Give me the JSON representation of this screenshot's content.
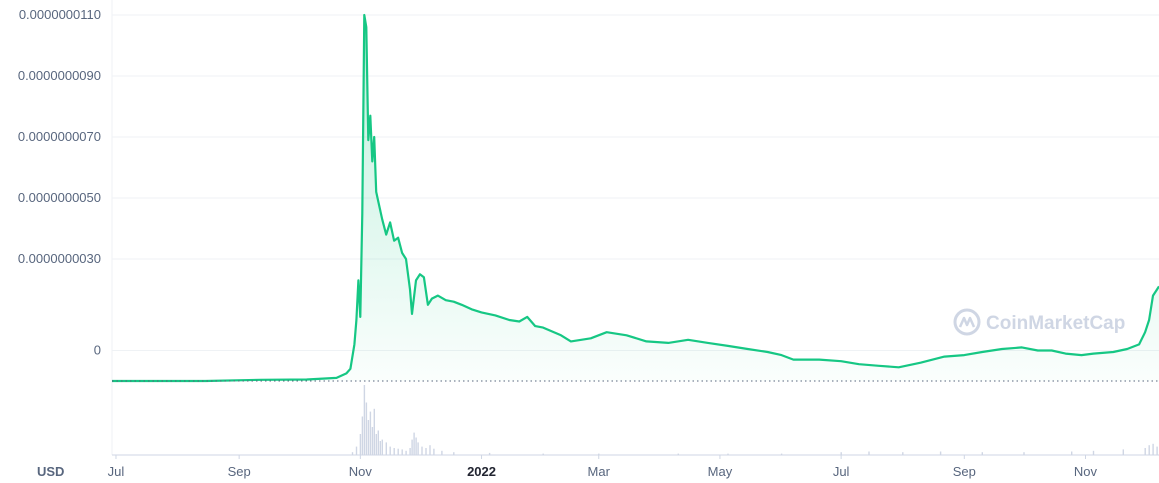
{
  "currency_label": "USD",
  "watermark": {
    "text": "CoinMarketCap",
    "icon": "coinmarketcap-logo-icon"
  },
  "colors": {
    "line": "#16c784",
    "fill_top": "#16c784",
    "volume": "#cfd6e4",
    "grid": "#eff2f5",
    "baseline_dots": "#58667e"
  },
  "chart_data": {
    "type": "area",
    "title": "",
    "xlabel": "",
    "ylabel": "",
    "ylim": [
      -1e-09,
      1.1e-08
    ],
    "yticks": [
      {
        "value": 1.1e-08,
        "label": "0.0000000110"
      },
      {
        "value": 9e-09,
        "label": "0.0000000090"
      },
      {
        "value": 7e-09,
        "label": "0.0000000070"
      },
      {
        "value": 5e-09,
        "label": "0.0000000050"
      },
      {
        "value": 3e-09,
        "label": "0.0000000030"
      },
      {
        "value": 0,
        "label": "0"
      }
    ],
    "xlim": [
      "2021-06-29",
      "2022-12-08"
    ],
    "xticks": [
      {
        "date": "2021-07-01",
        "label": "Jul",
        "bold": false
      },
      {
        "date": "2021-09-01",
        "label": "Sep",
        "bold": false
      },
      {
        "date": "2021-11-01",
        "label": "Nov",
        "bold": false
      },
      {
        "date": "2022-01-01",
        "label": "2022",
        "bold": true
      },
      {
        "date": "2022-03-01",
        "label": "Mar",
        "bold": false
      },
      {
        "date": "2022-05-01",
        "label": "May",
        "bold": false
      },
      {
        "date": "2022-07-01",
        "label": "Jul",
        "bold": false
      },
      {
        "date": "2022-09-01",
        "label": "Sep",
        "bold": false
      },
      {
        "date": "2022-11-01",
        "label": "Nov",
        "bold": false
      }
    ],
    "grid": true,
    "legend": "none",
    "series": [
      {
        "points": [
          [
            "2021-06-29",
            -1e-09
          ],
          [
            "2021-08-15",
            -1e-09
          ],
          [
            "2021-09-12",
            -9.6e-10
          ],
          [
            "2021-10-05",
            -9.5e-10
          ],
          [
            "2021-10-20",
            -9e-10
          ],
          [
            "2021-10-25",
            -7.5e-10
          ],
          [
            "2021-10-27",
            -6e-10
          ],
          [
            "2021-10-29",
            2e-10
          ],
          [
            "2021-10-30",
            1e-09
          ],
          [
            "2021-10-31",
            2.3e-09
          ],
          [
            "2021-11-01",
            1.1e-09
          ],
          [
            "2021-11-02",
            4.5e-09
          ],
          [
            "2021-11-03",
            1.1e-08
          ],
          [
            "2021-11-04",
            1.06e-08
          ],
          [
            "2021-11-05",
            6.9e-09
          ],
          [
            "2021-11-06",
            7.7e-09
          ],
          [
            "2021-11-07",
            6.2e-09
          ],
          [
            "2021-11-08",
            7e-09
          ],
          [
            "2021-11-09",
            5.2e-09
          ],
          [
            "2021-11-10",
            4.9e-09
          ],
          [
            "2021-11-12",
            4.3e-09
          ],
          [
            "2021-11-14",
            3.8e-09
          ],
          [
            "2021-11-16",
            4.2e-09
          ],
          [
            "2021-11-18",
            3.6e-09
          ],
          [
            "2021-11-20",
            3.7e-09
          ],
          [
            "2021-11-22",
            3.2e-09
          ],
          [
            "2021-11-24",
            3e-09
          ],
          [
            "2021-11-26",
            2e-09
          ],
          [
            "2021-11-27",
            1.2e-09
          ],
          [
            "2021-11-29",
            2.3e-09
          ],
          [
            "2021-12-01",
            2.5e-09
          ],
          [
            "2021-12-03",
            2.4e-09
          ],
          [
            "2021-12-05",
            1.5e-09
          ],
          [
            "2021-12-07",
            1.7e-09
          ],
          [
            "2021-12-10",
            1.8e-09
          ],
          [
            "2021-12-14",
            1.65e-09
          ],
          [
            "2021-12-18",
            1.6e-09
          ],
          [
            "2021-12-22",
            1.5e-09
          ],
          [
            "2021-12-27",
            1.35e-09
          ],
          [
            "2022-01-01",
            1.25e-09
          ],
          [
            "2022-01-08",
            1.15e-09
          ],
          [
            "2022-01-15",
            1e-09
          ],
          [
            "2022-01-20",
            9.5e-10
          ],
          [
            "2022-01-24",
            1.1e-09
          ],
          [
            "2022-01-28",
            8e-10
          ],
          [
            "2022-02-01",
            7.5e-10
          ],
          [
            "2022-02-10",
            5e-10
          ],
          [
            "2022-02-15",
            3e-10
          ],
          [
            "2022-02-25",
            4e-10
          ],
          [
            "2022-03-05",
            6e-10
          ],
          [
            "2022-03-15",
            5e-10
          ],
          [
            "2022-03-25",
            3e-10
          ],
          [
            "2022-04-05",
            2.5e-10
          ],
          [
            "2022-04-15",
            3.5e-10
          ],
          [
            "2022-04-25",
            2.5e-10
          ],
          [
            "2022-05-05",
            1.5e-10
          ],
          [
            "2022-05-15",
            5e-11
          ],
          [
            "2022-05-25",
            -5e-11
          ],
          [
            "2022-06-01",
            -1.5e-10
          ],
          [
            "2022-06-07",
            -3e-10
          ],
          [
            "2022-06-20",
            -3e-10
          ],
          [
            "2022-07-01",
            -3.5e-10
          ],
          [
            "2022-07-10",
            -4.5e-10
          ],
          [
            "2022-07-20",
            -5e-10
          ],
          [
            "2022-07-30",
            -5.5e-10
          ],
          [
            "2022-08-10",
            -4e-10
          ],
          [
            "2022-08-22",
            -2e-10
          ],
          [
            "2022-09-01",
            -1.5e-10
          ],
          [
            "2022-09-10",
            -5e-11
          ],
          [
            "2022-09-20",
            5e-11
          ],
          [
            "2022-09-30",
            1e-10
          ],
          [
            "2022-10-08",
            0.0
          ],
          [
            "2022-10-15",
            0.0
          ],
          [
            "2022-10-22",
            -1e-10
          ],
          [
            "2022-10-30",
            -1.5e-10
          ],
          [
            "2022-11-05",
            -1e-10
          ],
          [
            "2022-11-15",
            -5e-11
          ],
          [
            "2022-11-22",
            5e-11
          ],
          [
            "2022-11-28",
            2e-10
          ],
          [
            "2022-12-01",
            6e-10
          ],
          [
            "2022-12-03",
            1e-09
          ],
          [
            "2022-12-05",
            1.8e-09
          ],
          [
            "2022-12-07",
            2e-09
          ],
          [
            "2022-12-08",
            2.1e-09
          ]
        ]
      }
    ],
    "volume": {
      "xlim": [
        "2021-06-29",
        "2022-12-08"
      ],
      "max": 100,
      "bars": [
        [
          "2021-10-28",
          4
        ],
        [
          "2021-10-30",
          12
        ],
        [
          "2021-11-01",
          30
        ],
        [
          "2021-11-02",
          55
        ],
        [
          "2021-11-03",
          100
        ],
        [
          "2021-11-04",
          75
        ],
        [
          "2021-11-05",
          50
        ],
        [
          "2021-11-06",
          62
        ],
        [
          "2021-11-07",
          40
        ],
        [
          "2021-11-08",
          66
        ],
        [
          "2021-11-09",
          30
        ],
        [
          "2021-11-10",
          35
        ],
        [
          "2021-11-11",
          20
        ],
        [
          "2021-11-12",
          22
        ],
        [
          "2021-11-14",
          18
        ],
        [
          "2021-11-16",
          12
        ],
        [
          "2021-11-18",
          10
        ],
        [
          "2021-11-20",
          9
        ],
        [
          "2021-11-22",
          8
        ],
        [
          "2021-11-24",
          6
        ],
        [
          "2021-11-26",
          10
        ],
        [
          "2021-11-27",
          22
        ],
        [
          "2021-11-28",
          32
        ],
        [
          "2021-11-29",
          25
        ],
        [
          "2021-11-30",
          18
        ],
        [
          "2021-12-02",
          12
        ],
        [
          "2021-12-04",
          10
        ],
        [
          "2021-12-06",
          14
        ],
        [
          "2021-12-08",
          9
        ],
        [
          "2021-12-12",
          6
        ],
        [
          "2021-12-18",
          4
        ],
        [
          "2022-01-05",
          3
        ],
        [
          "2022-02-01",
          2
        ],
        [
          "2022-03-01",
          2
        ],
        [
          "2022-04-10",
          2
        ],
        [
          "2022-05-05",
          2
        ],
        [
          "2022-06-01",
          2
        ],
        [
          "2022-07-01",
          4
        ],
        [
          "2022-07-15",
          5
        ],
        [
          "2022-08-01",
          4
        ],
        [
          "2022-08-20",
          5
        ],
        [
          "2022-09-10",
          4
        ],
        [
          "2022-10-01",
          4
        ],
        [
          "2022-10-25",
          5
        ],
        [
          "2022-11-05",
          6
        ],
        [
          "2022-11-20",
          8
        ],
        [
          "2022-12-01",
          10
        ],
        [
          "2022-12-03",
          14
        ],
        [
          "2022-12-05",
          16
        ],
        [
          "2022-12-07",
          12
        ]
      ]
    }
  }
}
